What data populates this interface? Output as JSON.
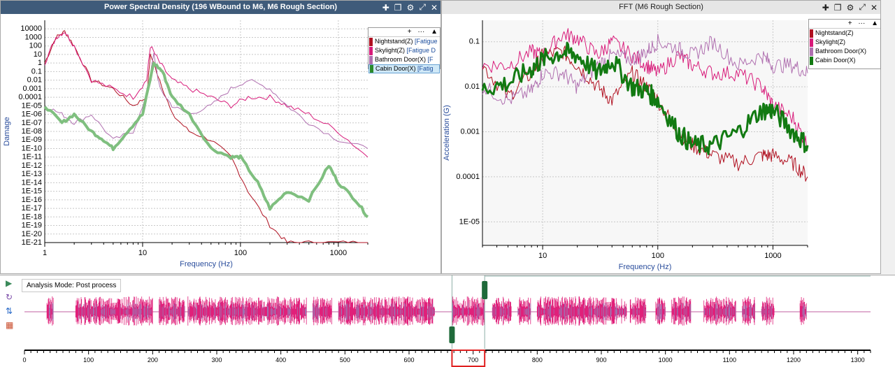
{
  "left_panel": {
    "title": "Power Spectral Density (196 WBound to M6, M6 Rough Section)",
    "icons": [
      "add-icon",
      "copy-icon",
      "gear-icon",
      "expand-icon",
      "close-icon"
    ],
    "ylabel": "Damage",
    "xlabel": "Frequency (Hz)",
    "y_ticks": [
      "10000",
      "1000",
      "100",
      "10",
      "1",
      "0.1",
      "0.01",
      "0.001",
      "0.0001",
      "1E-05",
      "1E-06",
      "1E-07",
      "1E-08",
      "1E-09",
      "1E-10",
      "1E-11",
      "1E-12",
      "1E-13",
      "1E-14",
      "1E-15",
      "1E-16",
      "1E-17",
      "1E-18",
      "1E-19",
      "1E-20",
      "1E-21"
    ],
    "x_ticks": [
      "1",
      "10",
      "100",
      "1000"
    ],
    "legend": [
      {
        "label": "Nightstand(Z)",
        "tag": "[Fatigue",
        "color": "#b01020"
      },
      {
        "label": "Skylight(Z)",
        "tag": "[Fatigue D",
        "color": "#d81b7a"
      },
      {
        "label": "Bathroom Door(X)",
        "tag": "[F",
        "color": "#b070b0"
      },
      {
        "label": "Cabin Door(X)",
        "tag": "[Fatig",
        "color": "#2a8a2a"
      }
    ]
  },
  "right_panel": {
    "title": "FFT (M6 Rough Section)",
    "icons": [
      "add-icon",
      "copy-icon",
      "gear-icon",
      "expand-icon",
      "close-icon"
    ],
    "ylabel": "Acceleration (G)",
    "xlabel": "Frequency (Hz)",
    "y_ticks": [
      "0.1",
      "0.01",
      "0.001",
      "0.0001",
      "1E-05"
    ],
    "x_ticks": [
      "10",
      "100",
      "1000"
    ],
    "legend": [
      {
        "label": "Nightstand(Z)",
        "color": "#b01020"
      },
      {
        "label": "Skylight(Z)",
        "color": "#d81b7a"
      },
      {
        "label": "Bathroom Door(X)",
        "color": "#b070b0"
      },
      {
        "label": "Cabin Door(X)",
        "color": "#127a12"
      }
    ]
  },
  "legend_header": {
    "add": "+",
    "more": "···",
    "collapse": "▲"
  },
  "bottom": {
    "mode_label": "Analysis Mode: Post process",
    "side_buttons": [
      "play-icon",
      "refresh-icon",
      "sync-icon",
      "settings-icon"
    ],
    "timeline_ticks": [
      "0",
      "100",
      "200",
      "300",
      "400",
      "500",
      "600",
      "700",
      "800",
      "900",
      "1000",
      "1100",
      "1200",
      "1300"
    ],
    "selection_start": 667,
    "selection_end": 718
  },
  "chart_data": [
    {
      "type": "line",
      "title": "Power Spectral Density (196 WBound to M6, M6 Rough Section)",
      "xlabel": "Frequency (Hz)",
      "ylabel": "Damage",
      "x_scale": "log",
      "y_scale": "log",
      "xlim": [
        1,
        2000
      ],
      "ylim": [
        1e-21,
        100000.0
      ],
      "series": [
        {
          "name": "Nightstand(Z)",
          "x": [
            1,
            1.3,
            1.6,
            2,
            3,
            5,
            8,
            11,
            12,
            15,
            20,
            30,
            50,
            80,
            120,
            200,
            300,
            500,
            1000,
            2000
          ],
          "values": [
            1,
            1000.0,
            5000.0,
            100,
            0.01,
            0.001,
            1e-05,
            0.0001,
            10,
            0.01,
            1e-06,
            1e-08,
            1e-09,
            1e-11,
            1e-15,
            1e-19,
            1e-21,
            1e-21,
            1e-21,
            1e-21
          ]
        },
        {
          "name": "Skylight(Z)",
          "x": [
            1,
            1.3,
            1.6,
            2,
            3,
            5,
            8,
            11,
            12,
            15,
            20,
            30,
            50,
            80,
            120,
            200,
            300,
            500,
            1000,
            2000
          ],
          "values": [
            1,
            1000.0,
            5000.0,
            100,
            0.01,
            0.001,
            0.0001,
            0.01,
            100,
            1,
            0.01,
            0.001,
            0.0001,
            1e-05,
            0.0001,
            0.0001,
            1e-05,
            1e-06,
            1e-08,
            1e-11
          ]
        },
        {
          "name": "Bathroom Door(X)",
          "x": [
            1,
            1.5,
            2,
            3,
            5,
            8,
            11,
            13,
            15,
            20,
            30,
            50,
            80,
            120,
            200,
            300,
            500,
            1000,
            2000
          ],
          "values": [
            1e-05,
            1e-06,
            1e-07,
            1e-06,
            1e-09,
            1e-08,
            0.0001,
            10,
            0.001,
            1e-05,
            1e-06,
            1e-05,
            0.001,
            0.01,
            0.001,
            1e-05,
            1e-07,
            1e-09,
            1e-10
          ]
        },
        {
          "name": "Cabin Door(X)",
          "x": [
            1,
            1.5,
            2,
            3,
            4,
            5,
            7,
            10,
            13,
            16,
            20,
            30,
            50,
            80,
            100,
            150,
            200,
            300,
            500,
            800,
            1000,
            1500,
            2000
          ],
          "values": [
            1e-05,
            1e-07,
            1e-06,
            1e-08,
            1e-09,
            1e-10,
            1e-08,
            1e-06,
            1,
            0.1,
            0.0001,
            1e-06,
            1e-10,
            1e-11,
            1e-11,
            1e-14,
            1e-17,
            1e-15,
            1e-16,
            1e-12,
            1e-14,
            1e-16,
            1e-18
          ]
        }
      ]
    },
    {
      "type": "line",
      "title": "FFT (M6 Rough Section)",
      "xlabel": "Frequency (Hz)",
      "ylabel": "Acceleration (G)",
      "x_scale": "log",
      "y_scale": "log",
      "xlim": [
        3,
        2000
      ],
      "ylim": [
        3e-06,
        0.3
      ],
      "series": [
        {
          "name": "Nightstand(Z)",
          "x": [
            3,
            5,
            8,
            10,
            15,
            20,
            30,
            40,
            60,
            80,
            100,
            150,
            200,
            300,
            500,
            800,
            1000,
            1500,
            2000
          ],
          "values": [
            0.03,
            0.006,
            0.02,
            0.05,
            0.06,
            0.03,
            0.01,
            0.005,
            0.02,
            0.01,
            0.005,
            0.001,
            0.0005,
            0.0003,
            0.0002,
            0.0003,
            0.0003,
            0.0002,
            0.0001
          ]
        },
        {
          "name": "Skylight(Z)",
          "x": [
            3,
            5,
            8,
            10,
            15,
            20,
            30,
            40,
            60,
            80,
            100,
            150,
            200,
            300,
            500,
            800,
            1000,
            1500,
            2000
          ],
          "values": [
            0.03,
            0.03,
            0.06,
            0.05,
            0.15,
            0.12,
            0.05,
            0.1,
            0.05,
            0.03,
            0.02,
            0.05,
            0.03,
            0.02,
            0.02,
            0.01,
            0.004,
            0.002,
            0.0005
          ]
        },
        {
          "name": "Bathroom Door(X)",
          "x": [
            3,
            5,
            8,
            10,
            15,
            20,
            30,
            40,
            60,
            80,
            100,
            150,
            200,
            300,
            500,
            800,
            1000,
            1500,
            2000
          ],
          "values": [
            0.01,
            0.005,
            0.008,
            0.02,
            0.02,
            0.01,
            0.03,
            0.05,
            0.04,
            0.06,
            0.1,
            0.07,
            0.05,
            0.1,
            0.03,
            0.05,
            0.03,
            0.03,
            0.02
          ]
        },
        {
          "name": "Cabin Door(X)",
          "x": [
            3,
            5,
            8,
            10,
            15,
            20,
            30,
            40,
            60,
            80,
            100,
            150,
            200,
            300,
            500,
            800,
            1000,
            1500,
            2000
          ],
          "values": [
            0.009,
            0.012,
            0.025,
            0.04,
            0.06,
            0.05,
            0.02,
            0.04,
            0.01,
            0.008,
            0.005,
            0.001,
            0.0005,
            0.0005,
            0.001,
            0.003,
            0.003,
            0.001,
            0.0005
          ]
        }
      ]
    }
  ]
}
